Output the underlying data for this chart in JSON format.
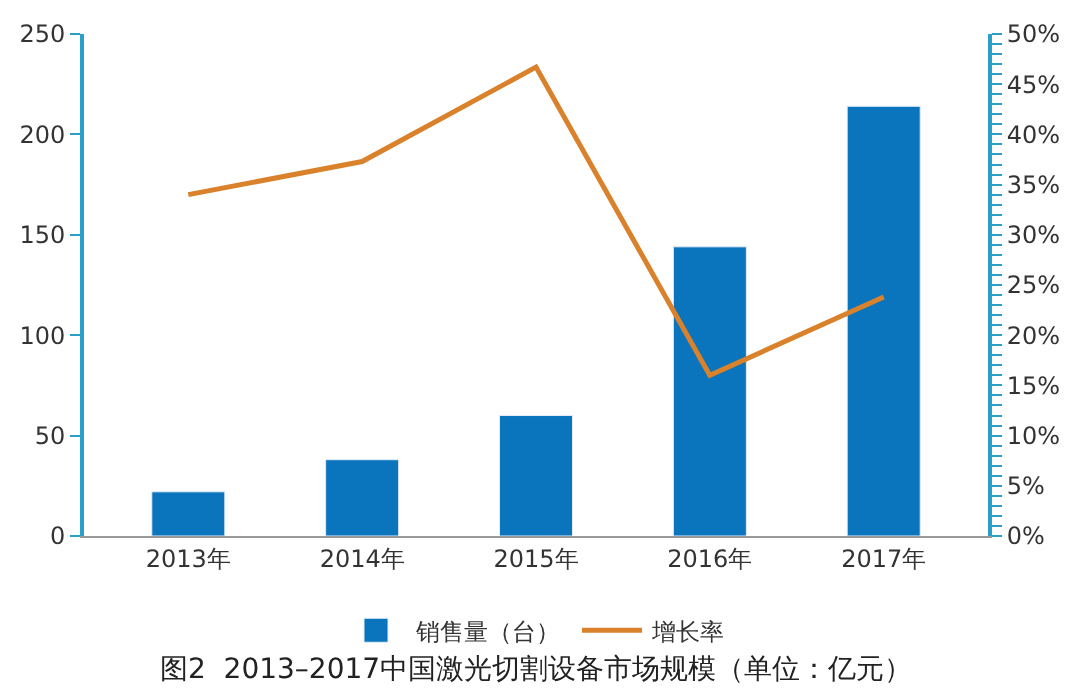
{
  "chart_data": {
    "type": "bar",
    "categories": [
      "2013年",
      "2014年",
      "2015年",
      "2016年",
      "2017年"
    ],
    "series": [
      {
        "name": "销售量（台）",
        "color": "#0a74bd",
        "values": [
          22,
          38,
          60,
          144,
          214
        ]
      },
      {
        "name": "增长率",
        "type": "line",
        "axis": "y2",
        "color": "#d9822b",
        "values": [
          34,
          37.3,
          46.7,
          16,
          23.8
        ]
      }
    ],
    "ylim": [
      0,
      250
    ],
    "yticks": [
      0,
      50,
      100,
      150,
      200,
      250
    ],
    "y2lim": [
      0,
      50
    ],
    "y2ticks": [
      {
        "value": 0,
        "label": "0%"
      },
      {
        "value": 1,
        "label": null
      },
      {
        "value": 2,
        "label": null
      },
      {
        "value": 3,
        "label": null
      },
      {
        "value": 4,
        "label": null
      },
      {
        "value": 5,
        "label": "5%"
      },
      {
        "value": 6,
        "label": null
      },
      {
        "value": 7,
        "label": null
      },
      {
        "value": 8,
        "label": null
      },
      {
        "value": 9,
        "label": null
      },
      {
        "value": 10,
        "label": "10%"
      },
      {
        "value": 11,
        "label": null
      },
      {
        "value": 12,
        "label": null
      },
      {
        "value": 13,
        "label": null
      },
      {
        "value": 14,
        "label": null
      },
      {
        "value": 15,
        "label": "15%"
      },
      {
        "value": 16,
        "label": null
      },
      {
        "value": 17,
        "label": null
      },
      {
        "value": 18,
        "label": null
      },
      {
        "value": 19,
        "label": null
      },
      {
        "value": 20,
        "label": "20%"
      },
      {
        "value": 21,
        "label": null
      },
      {
        "value": 22,
        "label": null
      },
      {
        "value": 23,
        "label": null
      },
      {
        "value": 24,
        "label": null
      },
      {
        "value": 25,
        "label": "25%"
      },
      {
        "value": 26,
        "label": null
      },
      {
        "value": 27,
        "label": null
      },
      {
        "value": 28,
        "label": null
      },
      {
        "value": 29,
        "label": null
      },
      {
        "value": 30,
        "label": "30%"
      },
      {
        "value": 31,
        "label": null
      },
      {
        "value": 32,
        "label": null
      },
      {
        "value": 33,
        "label": null
      },
      {
        "value": 34,
        "label": null
      },
      {
        "value": 35,
        "label": "35%"
      },
      {
        "value": 36,
        "label": null
      },
      {
        "value": 37,
        "label": null
      },
      {
        "value": 38,
        "label": null
      },
      {
        "value": 39,
        "label": null
      },
      {
        "value": 40,
        "label": "40%"
      },
      {
        "value": 41,
        "label": null
      },
      {
        "value": 42,
        "label": null
      },
      {
        "value": 43,
        "label": null
      },
      {
        "value": 44,
        "label": null
      },
      {
        "value": 45,
        "label": "45%"
      },
      {
        "value": 46,
        "label": null
      },
      {
        "value": 47,
        "label": null
      },
      {
        "value": 48,
        "label": null
      },
      {
        "value": 49,
        "label": null
      },
      {
        "value": 50,
        "label": "50%"
      }
    ],
    "legend": "bottom",
    "marker": "none",
    "line_style": "solid",
    "annotations": [
      "图2  2013–2017中国激光切割设备市场规模（单位：亿元）"
    ]
  }
}
